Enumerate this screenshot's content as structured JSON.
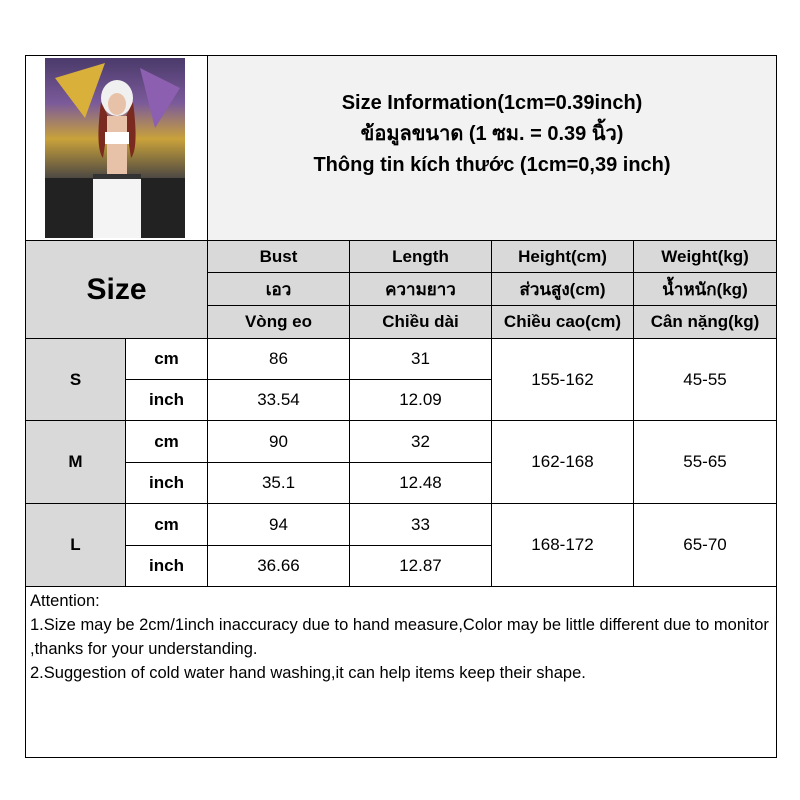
{
  "header": {
    "line1": "Size Information(1cm=0.39inch)",
    "line2": "ข้อมูลขนาด (1 ซม. = 0.39 นิ้ว)",
    "line3": "Thông tin kích thước (1cm=0,39 inch)"
  },
  "size_label": "Size",
  "columns": [
    {
      "en": "Bust",
      "th": "เอว",
      "vi": "Vòng eo"
    },
    {
      "en": "Length",
      "th": "ความยาว",
      "vi": "Chiều dài"
    },
    {
      "en": "Height(cm)",
      "th": "ส่วนสูง(cm)",
      "vi": "Chiều cao(cm)"
    },
    {
      "en": "Weight(kg)",
      "th": "น้ำหนัก(kg)",
      "vi": "Cân nặng(kg)"
    }
  ],
  "rows": [
    {
      "size": "S",
      "cm_label": "cm",
      "inch_label": "inch",
      "bust_cm": "86",
      "length_cm": "31",
      "bust_inch": "33.54",
      "length_inch": "12.09",
      "height": "155-162",
      "weight": "45-55"
    },
    {
      "size": "M",
      "cm_label": "cm",
      "inch_label": "inch",
      "bust_cm": "90",
      "length_cm": "32",
      "bust_inch": "35.1",
      "length_inch": "12.48",
      "height": "162-168",
      "weight": "55-65"
    },
    {
      "size": "L",
      "cm_label": "cm",
      "inch_label": "inch",
      "bust_cm": "94",
      "length_cm": "33",
      "bust_inch": "36.66",
      "length_inch": "12.87",
      "height": "168-172",
      "weight": "65-70"
    }
  ],
  "attention": {
    "title": "Attention:",
    "note1": "1.Size may be 2cm/1inch inaccuracy due to hand measure,Color may be little different due to monitor ,thanks for your understanding.",
    "note2": "2.Suggestion of cold water hand washing,it can help items keep their shape."
  },
  "colors": {
    "header_gray": "#d9d9d9",
    "title_bg": "#f2f2f2"
  }
}
